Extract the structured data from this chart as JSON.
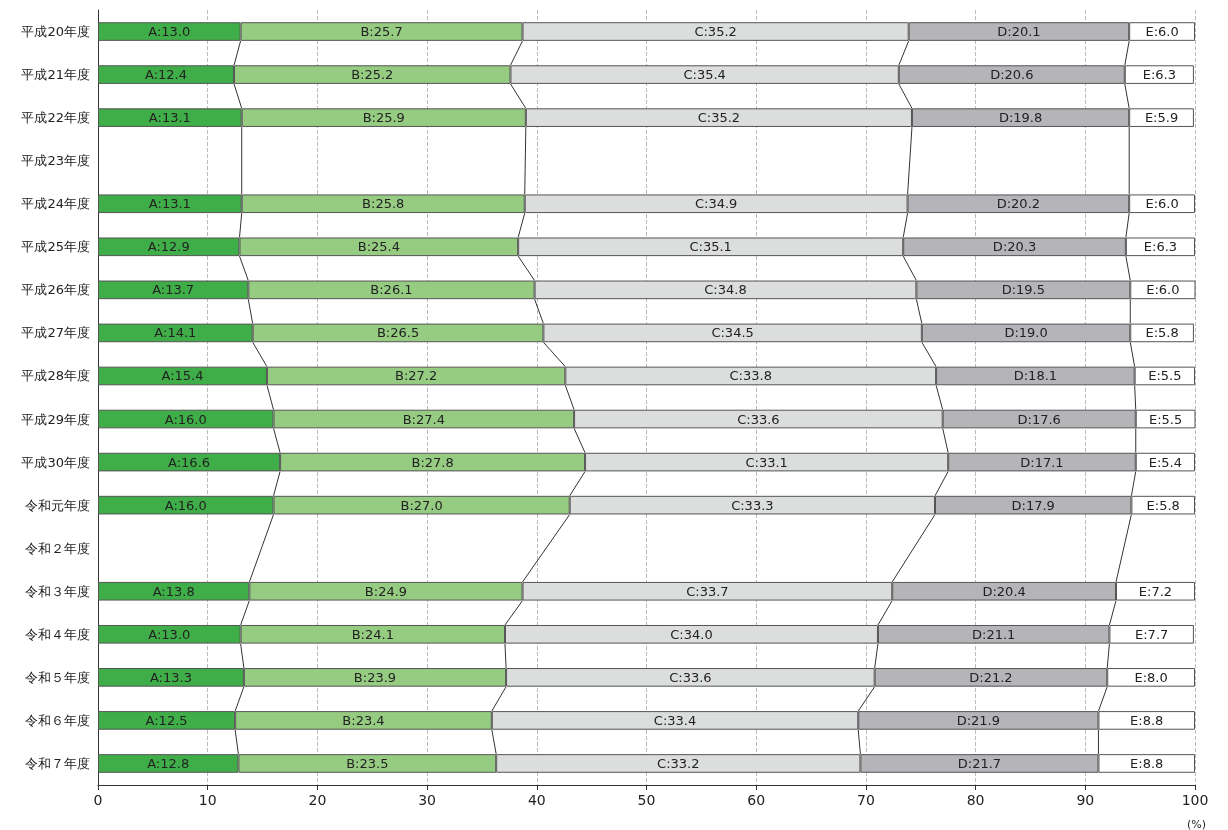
{
  "chart_data": {
    "type": "bar",
    "orientation": "horizontal",
    "stacked": true,
    "xlabel": "(%)",
    "xlim": [
      0,
      100
    ],
    "xticks": [
      0,
      10,
      20,
      30,
      40,
      50,
      60,
      70,
      80,
      90,
      100
    ],
    "grid": "x",
    "categories": [
      "平成20年度",
      "平成21年度",
      "平成22年度",
      "平成23年度",
      "平成24年度",
      "平成25年度",
      "平成26年度",
      "平成27年度",
      "平成28年度",
      "平成29年度",
      "平成30年度",
      "令和元年度",
      "令和２年度",
      "令和３年度",
      "令和４年度",
      "令和５年度",
      "令和６年度",
      "令和７年度"
    ],
    "series": [
      {
        "color": "#3fae49",
        "values": [
          13.0,
          12.4,
          13.1,
          null,
          13.1,
          12.9,
          13.7,
          14.1,
          15.4,
          16.0,
          16.6,
          16.0,
          null,
          13.8,
          13.0,
          13.3,
          12.5,
          12.8
        ],
        "value_labels": [
          "A:13.0",
          "A:12.4",
          "A:13.1",
          null,
          "A:13.1",
          "A:12.9",
          "A:13.7",
          "A:14.1",
          "A:15.4",
          "A:16.0",
          "A:16.6",
          "A:16.0",
          null,
          "A:13.8",
          "A:13.0",
          "A:13.3",
          "A:12.5",
          "A:12.8"
        ]
      },
      {
        "color": "#96cc82",
        "values": [
          25.7,
          25.2,
          25.9,
          null,
          25.8,
          25.4,
          26.1,
          26.5,
          27.2,
          27.4,
          27.8,
          27.0,
          null,
          24.9,
          24.1,
          23.9,
          23.4,
          23.5
        ],
        "value_labels": [
          "B:25.7",
          "B:25.2",
          "B:25.9",
          null,
          "B:25.8",
          "B:25.4",
          "B:26.1",
          "B:26.5",
          "B:27.2",
          "B:27.4",
          "B:27.8",
          "B:27.0",
          null,
          "B:24.9",
          "B:24.1",
          "B:23.9",
          "B:23.4",
          "B:23.5"
        ]
      },
      {
        "color": "#dcdddd",
        "values": [
          35.2,
          35.4,
          35.2,
          null,
          34.9,
          35.1,
          34.8,
          34.5,
          33.8,
          33.6,
          33.1,
          33.3,
          null,
          33.7,
          34.0,
          33.6,
          33.4,
          33.2
        ],
        "value_labels": [
          "C:35.2",
          "C:35.4",
          "C:35.2",
          null,
          "C:34.9",
          "C:35.1",
          "C:34.8",
          "C:34.5",
          "C:33.8",
          "C:33.6",
          "C:33.1",
          "C:33.3",
          null,
          "C:33.7",
          "C:34.0",
          "C:33.6",
          "C:33.4",
          "C:33.2"
        ]
      },
      {
        "color": "#b4b4b9",
        "values": [
          20.1,
          20.6,
          19.8,
          null,
          20.2,
          20.3,
          19.5,
          19.0,
          18.1,
          17.6,
          17.1,
          17.9,
          null,
          20.4,
          21.1,
          21.2,
          21.9,
          21.7
        ],
        "value_labels": [
          "D:20.1",
          "D:20.6",
          "D:19.8",
          null,
          "D:20.2",
          "D:20.3",
          "D:19.5",
          "D:19.0",
          "D:18.1",
          "D:17.6",
          "D:17.1",
          "D:17.9",
          null,
          "D:20.4",
          "D:21.1",
          "D:21.2",
          "D:21.9",
          "D:21.7"
        ]
      },
      {
        "color": "#ffffff",
        "values": [
          6.0,
          6.3,
          5.9,
          null,
          6.0,
          6.3,
          6.0,
          5.8,
          5.5,
          5.5,
          5.4,
          5.8,
          null,
          7.2,
          7.7,
          8.0,
          8.8,
          8.8
        ],
        "value_labels": [
          "E:6.0",
          "E:6.3",
          "E:5.9",
          null,
          "E:6.0",
          "E:6.3",
          "E:6.0",
          "E:5.8",
          "E:5.5",
          "E:5.5",
          "E:5.4",
          "E:5.8",
          null,
          "E:7.2",
          "E:7.7",
          "E:8.0",
          "E:8.8",
          "E:8.8"
        ]
      }
    ]
  }
}
